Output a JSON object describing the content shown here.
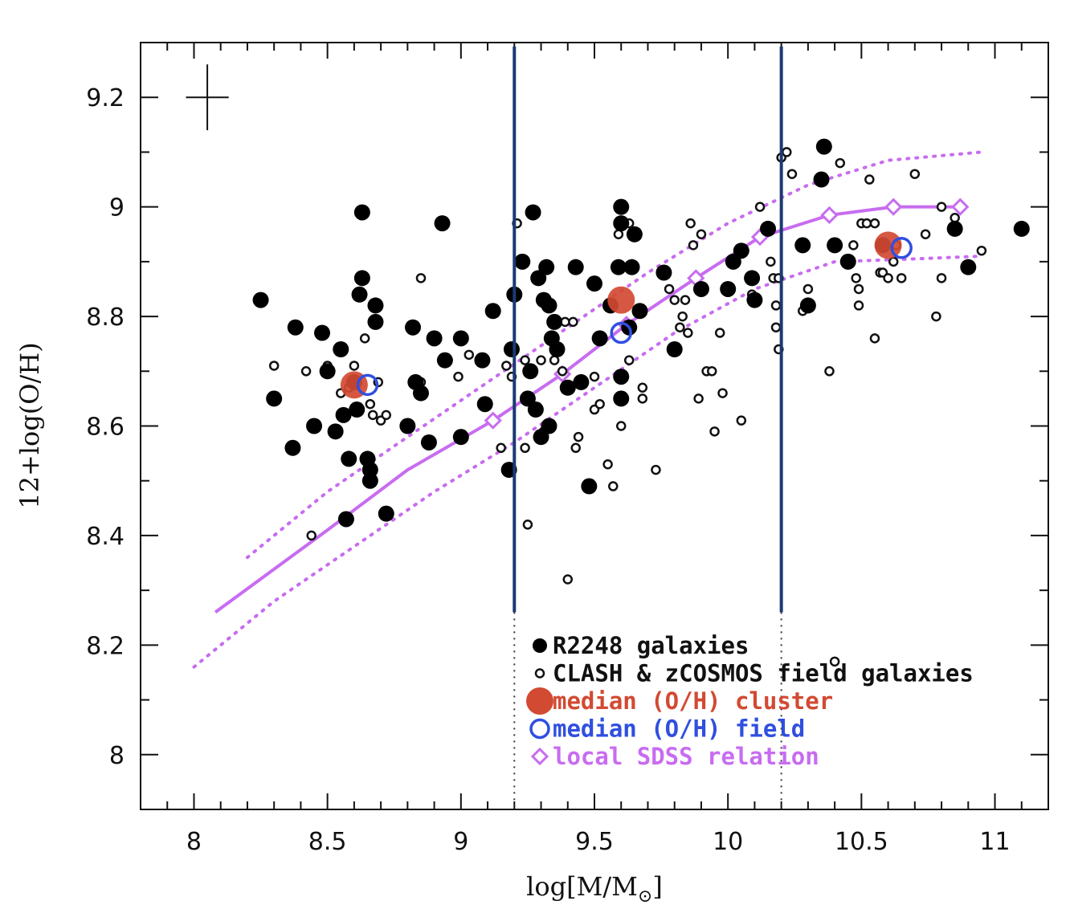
{
  "chart_data": {
    "type": "scatter",
    "xlabel": "log[M/M",
    "xlabel_sun": "⊙",
    "xlabel_close": "]",
    "ylabel": "12+log(O/H)",
    "xlim": [
      7.8,
      11.2
    ],
    "ylim": [
      7.9,
      9.3
    ],
    "x_ticks": [
      8,
      8.5,
      9,
      9.5,
      10,
      10.5,
      11
    ],
    "x_tick_labels": [
      "8",
      "8.5",
      "9",
      "9.5",
      "10",
      "10.5",
      "11"
    ],
    "y_ticks": [
      8,
      8.2,
      8.4,
      8.6,
      8.8,
      9,
      9.2
    ],
    "y_tick_labels": [
      "8",
      "8.2",
      "8.4",
      "8.6",
      "8.8",
      "9",
      "9.2"
    ],
    "vertical_lines": [
      9.2,
      10.2
    ],
    "error_bar": {
      "x": 8.05,
      "y": 9.2,
      "dx": 0.08,
      "dy": 0.06
    },
    "colors": {
      "cluster": "#d24a32",
      "field": "#2f4fe0",
      "sdss": "#c86cf0",
      "vline": "#1a3a72",
      "points": "#000000"
    },
    "series": [
      {
        "name": "R2248 galaxies",
        "marker": "filled-circle",
        "points": [
          [
            8.25,
            8.83
          ],
          [
            8.3,
            8.65
          ],
          [
            8.37,
            8.56
          ],
          [
            8.38,
            8.78
          ],
          [
            8.45,
            8.6
          ],
          [
            8.48,
            8.77
          ],
          [
            8.5,
            8.7
          ],
          [
            8.53,
            8.59
          ],
          [
            8.55,
            8.74
          ],
          [
            8.56,
            8.62
          ],
          [
            8.57,
            8.43
          ],
          [
            8.58,
            8.54
          ],
          [
            8.6,
            8.68
          ],
          [
            8.61,
            8.63
          ],
          [
            8.62,
            8.84
          ],
          [
            8.63,
            8.87
          ],
          [
            8.63,
            8.99
          ],
          [
            8.65,
            8.54
          ],
          [
            8.66,
            8.52
          ],
          [
            8.66,
            8.5
          ],
          [
            8.68,
            8.82
          ],
          [
            8.68,
            8.79
          ],
          [
            8.72,
            8.44
          ],
          [
            8.8,
            8.6
          ],
          [
            8.82,
            8.78
          ],
          [
            8.83,
            8.68
          ],
          [
            8.85,
            8.66
          ],
          [
            8.88,
            8.57
          ],
          [
            8.9,
            8.76
          ],
          [
            8.93,
            8.97
          ],
          [
            8.94,
            8.72
          ],
          [
            9.0,
            8.76
          ],
          [
            9.0,
            8.58
          ],
          [
            9.08,
            8.72
          ],
          [
            9.09,
            8.64
          ],
          [
            9.12,
            8.81
          ],
          [
            9.18,
            8.52
          ],
          [
            9.19,
            8.74
          ],
          [
            9.2,
            8.84
          ],
          [
            9.23,
            8.9
          ],
          [
            9.25,
            8.65
          ],
          [
            9.26,
            8.7
          ],
          [
            9.27,
            8.99
          ],
          [
            9.28,
            8.63
          ],
          [
            9.29,
            8.87
          ],
          [
            9.3,
            8.58
          ],
          [
            9.31,
            8.83
          ],
          [
            9.32,
            8.89
          ],
          [
            9.33,
            8.6
          ],
          [
            9.33,
            8.82
          ],
          [
            9.34,
            8.76
          ],
          [
            9.35,
            8.79
          ],
          [
            9.36,
            8.74
          ],
          [
            9.4,
            8.67
          ],
          [
            9.43,
            8.89
          ],
          [
            9.45,
            8.68
          ],
          [
            9.48,
            8.49
          ],
          [
            9.5,
            8.86
          ],
          [
            9.52,
            8.76
          ],
          [
            9.56,
            8.82
          ],
          [
            9.59,
            8.89
          ],
          [
            9.6,
            9.0
          ],
          [
            9.6,
            8.97
          ],
          [
            9.6,
            8.69
          ],
          [
            9.6,
            8.65
          ],
          [
            9.63,
            8.78
          ],
          [
            9.64,
            8.89
          ],
          [
            9.65,
            8.95
          ],
          [
            9.67,
            8.81
          ],
          [
            9.76,
            8.88
          ],
          [
            9.8,
            8.74
          ],
          [
            9.9,
            8.85
          ],
          [
            10.0,
            8.85
          ],
          [
            10.02,
            8.9
          ],
          [
            10.05,
            8.92
          ],
          [
            10.09,
            8.87
          ],
          [
            10.1,
            8.83
          ],
          [
            10.15,
            8.96
          ],
          [
            10.28,
            8.93
          ],
          [
            10.3,
            8.82
          ],
          [
            10.35,
            9.05
          ],
          [
            10.36,
            9.11
          ],
          [
            10.4,
            8.93
          ],
          [
            10.45,
            8.9
          ],
          [
            10.58,
            8.93
          ],
          [
            10.85,
            8.96
          ],
          [
            10.9,
            8.89
          ],
          [
            11.1,
            8.96
          ]
        ]
      },
      {
        "name": "CLASH & zCOSMOS field galaxies",
        "marker": "open-circle",
        "points": [
          [
            8.3,
            8.71
          ],
          [
            8.42,
            8.7
          ],
          [
            8.44,
            8.4
          ],
          [
            8.5,
            8.71
          ],
          [
            8.55,
            8.66
          ],
          [
            8.58,
            8.67
          ],
          [
            8.6,
            8.71
          ],
          [
            8.64,
            8.76
          ],
          [
            8.66,
            8.64
          ],
          [
            8.67,
            8.62
          ],
          [
            8.69,
            8.68
          ],
          [
            8.7,
            8.61
          ],
          [
            8.72,
            8.62
          ],
          [
            8.85,
            8.87
          ],
          [
            8.85,
            8.68
          ],
          [
            8.99,
            8.69
          ],
          [
            9.03,
            8.73
          ],
          [
            9.15,
            8.56
          ],
          [
            9.17,
            8.71
          ],
          [
            9.19,
            8.69
          ],
          [
            9.21,
            8.97
          ],
          [
            9.24,
            8.56
          ],
          [
            9.24,
            8.72
          ],
          [
            9.25,
            8.42
          ],
          [
            9.3,
            8.72
          ],
          [
            9.31,
            8.59
          ],
          [
            9.35,
            8.72
          ],
          [
            9.38,
            8.7
          ],
          [
            9.39,
            8.79
          ],
          [
            9.4,
            8.32
          ],
          [
            9.42,
            8.79
          ],
          [
            9.43,
            8.56
          ],
          [
            9.44,
            8.58
          ],
          [
            9.5,
            8.69
          ],
          [
            9.5,
            8.63
          ],
          [
            9.52,
            8.64
          ],
          [
            9.55,
            8.53
          ],
          [
            9.57,
            8.49
          ],
          [
            9.59,
            8.95
          ],
          [
            9.6,
            8.6
          ],
          [
            9.62,
            8.78
          ],
          [
            9.63,
            8.72
          ],
          [
            9.63,
            8.97
          ],
          [
            9.68,
            8.65
          ],
          [
            9.68,
            8.67
          ],
          [
            9.73,
            8.52
          ],
          [
            9.78,
            8.85
          ],
          [
            9.8,
            8.83
          ],
          [
            9.82,
            8.78
          ],
          [
            9.83,
            8.8
          ],
          [
            9.84,
            8.83
          ],
          [
            9.85,
            8.77
          ],
          [
            9.86,
            8.97
          ],
          [
            9.87,
            8.93
          ],
          [
            9.89,
            8.65
          ],
          [
            9.9,
            8.95
          ],
          [
            9.92,
            8.7
          ],
          [
            9.94,
            8.7
          ],
          [
            9.95,
            8.59
          ],
          [
            9.97,
            8.77
          ],
          [
            9.98,
            8.66
          ],
          [
            10.05,
            8.61
          ],
          [
            10.09,
            8.84
          ],
          [
            10.12,
            9.0
          ],
          [
            10.16,
            8.9
          ],
          [
            10.17,
            8.87
          ],
          [
            10.18,
            8.82
          ],
          [
            10.18,
            8.78
          ],
          [
            10.19,
            8.74
          ],
          [
            10.19,
            8.87
          ],
          [
            10.2,
            9.09
          ],
          [
            10.22,
            9.1
          ],
          [
            10.24,
            9.06
          ],
          [
            10.28,
            8.81
          ],
          [
            10.3,
            8.85
          ],
          [
            10.38,
            8.7
          ],
          [
            10.4,
            8.17
          ],
          [
            10.42,
            9.08
          ],
          [
            10.47,
            8.93
          ],
          [
            10.48,
            8.87
          ],
          [
            10.49,
            8.85
          ],
          [
            10.49,
            8.82
          ],
          [
            10.5,
            8.97
          ],
          [
            10.52,
            8.97
          ],
          [
            10.53,
            9.05
          ],
          [
            10.55,
            8.97
          ],
          [
            10.55,
            8.76
          ],
          [
            10.57,
            8.88
          ],
          [
            10.58,
            8.88
          ],
          [
            10.6,
            8.87
          ],
          [
            10.62,
            8.9
          ],
          [
            10.63,
            8.93
          ],
          [
            10.65,
            8.87
          ],
          [
            10.7,
            9.06
          ],
          [
            10.74,
            8.95
          ],
          [
            10.78,
            8.8
          ],
          [
            10.8,
            9.0
          ],
          [
            10.8,
            8.87
          ],
          [
            10.85,
            8.98
          ],
          [
            10.95,
            8.92
          ]
        ]
      },
      {
        "name": "median (O/H) cluster",
        "marker": "big-filled-circle",
        "points": [
          [
            8.6,
            8.675
          ],
          [
            9.6,
            8.83
          ],
          [
            10.6,
            8.93
          ]
        ]
      },
      {
        "name": "median (O/H) field",
        "marker": "big-open-circle",
        "points": [
          [
            8.65,
            8.675
          ],
          [
            9.6,
            8.77
          ],
          [
            10.65,
            8.925
          ]
        ]
      },
      {
        "name": "local SDSS relation",
        "marker": "open-diamond",
        "curve": [
          [
            8.08,
            8.26
          ],
          [
            8.5,
            8.41
          ],
          [
            8.8,
            8.52
          ],
          [
            9.12,
            8.61
          ],
          [
            9.38,
            8.695
          ],
          [
            9.62,
            8.785
          ],
          [
            9.88,
            8.87
          ],
          [
            10.12,
            8.945
          ],
          [
            10.38,
            8.985
          ],
          [
            10.62,
            9.0
          ],
          [
            10.87,
            9.0
          ]
        ],
        "diamonds": [
          [
            9.12,
            8.61
          ],
          [
            9.38,
            8.695
          ],
          [
            9.62,
            8.785
          ],
          [
            9.88,
            8.87
          ],
          [
            10.12,
            8.945
          ],
          [
            10.38,
            8.985
          ],
          [
            10.62,
            9.0
          ],
          [
            10.87,
            9.0
          ]
        ],
        "upper_dotted": [
          [
            8.2,
            8.36
          ],
          [
            8.5,
            8.48
          ],
          [
            8.8,
            8.58
          ],
          [
            9.1,
            8.68
          ],
          [
            9.4,
            8.78
          ],
          [
            9.7,
            8.88
          ],
          [
            10.0,
            8.97
          ],
          [
            10.3,
            9.04
          ],
          [
            10.6,
            9.085
          ],
          [
            10.95,
            9.1
          ]
        ],
        "lower_dotted": [
          [
            8.0,
            8.16
          ],
          [
            8.3,
            8.28
          ],
          [
            8.6,
            8.38
          ],
          [
            8.9,
            8.48
          ],
          [
            9.2,
            8.57
          ],
          [
            9.5,
            8.67
          ],
          [
            9.8,
            8.77
          ],
          [
            10.1,
            8.85
          ],
          [
            10.4,
            8.9
          ],
          [
            10.7,
            8.905
          ],
          [
            10.95,
            8.91
          ]
        ]
      }
    ],
    "legend": [
      {
        "label": "R2248 galaxies",
        "marker": "filled-circle",
        "color": "#111111"
      },
      {
        "label": "CLASH & zCOSMOS field galaxies",
        "marker": "open-circle",
        "color": "#111111"
      },
      {
        "label": "median (O/H) cluster",
        "marker": "big-filled-circle",
        "color": "#d24a32"
      },
      {
        "label": "median (O/H) field",
        "marker": "big-open-circle",
        "color": "#2f4fe0"
      },
      {
        "label": "local SDSS relation",
        "marker": "open-diamond",
        "color": "#c86cf0"
      }
    ],
    "legend_position": "bottom-center"
  }
}
